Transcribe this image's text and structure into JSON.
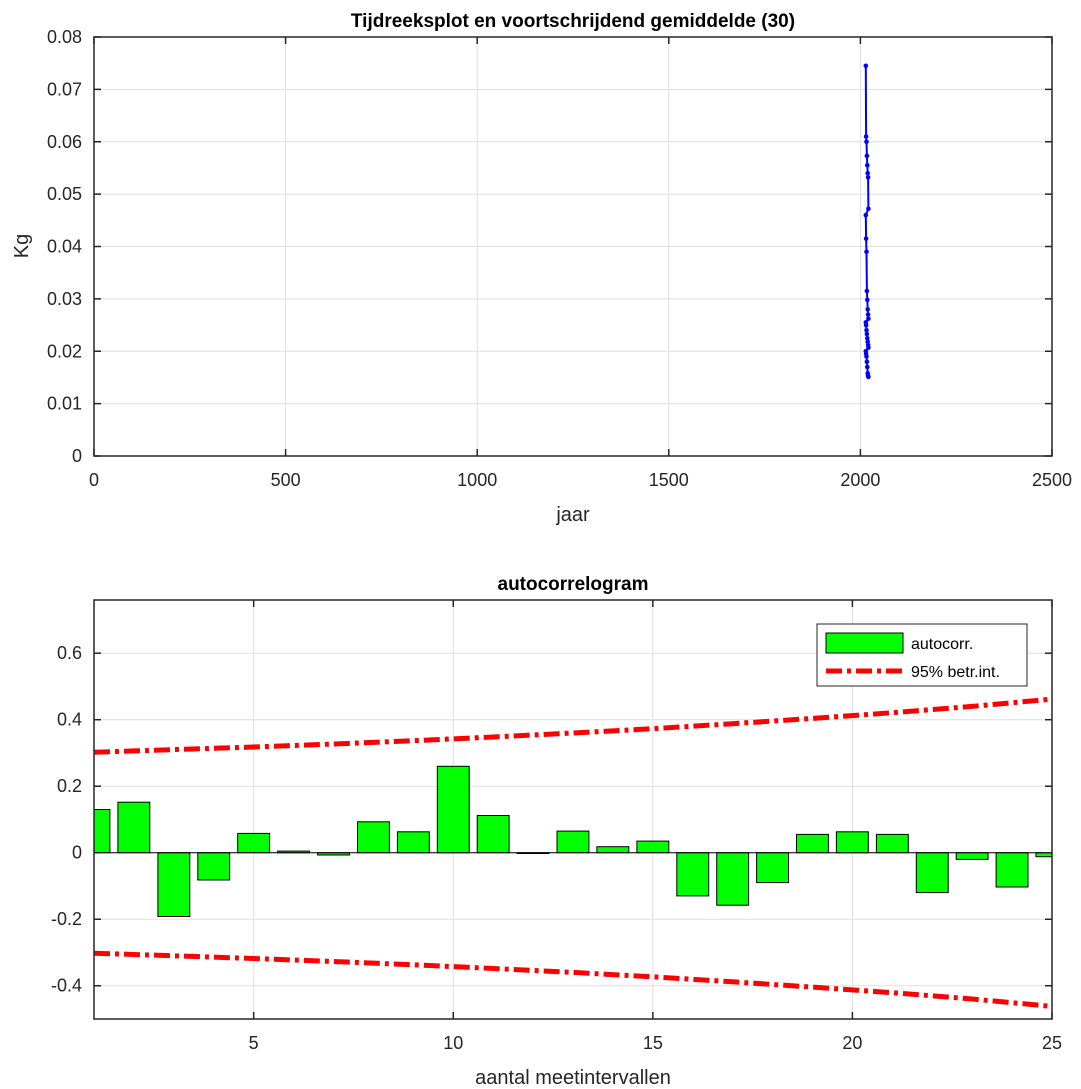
{
  "chart_data": [
    {
      "type": "line",
      "title": "Tijdreeksplot en voortschrijdend gemiddelde (30)",
      "xlabel": "jaar",
      "ylabel": "Kg",
      "xlim": [
        0,
        2500
      ],
      "ylim": [
        0,
        0.08
      ],
      "xticks": [
        "0",
        "500",
        "1000",
        "1500",
        "2000",
        "2500"
      ],
      "yticks": [
        "0",
        "0.01",
        "0.02",
        "0.03",
        "0.04",
        "0.05",
        "0.06",
        "0.07",
        "0.08"
      ],
      "grid": true,
      "series_color": "#0000ff",
      "series": [
        {
          "x": [
            2014,
            2015,
            2016,
            2017,
            2018,
            2019,
            2020,
            2021,
            2014,
            2015,
            2016,
            2017,
            2018,
            2019,
            2020,
            2021,
            2014,
            2015,
            2016,
            2017,
            2018,
            2019,
            2020,
            2021,
            2014,
            2015,
            2016,
            2017,
            2018,
            2019,
            2020,
            2021
          ],
          "values": [
            0.0745,
            0.061,
            0.06,
            0.0573,
            0.0555,
            0.054,
            0.0532,
            0.0472,
            0.046,
            0.0415,
            0.039,
            0.0315,
            0.0298,
            0.028,
            0.027,
            0.0262,
            0.0255,
            0.025,
            0.024,
            0.0233,
            0.0225,
            0.0218,
            0.0212,
            0.0207,
            0.02,
            0.0195,
            0.019,
            0.018,
            0.017,
            0.0158,
            0.0153,
            0.0151
          ]
        }
      ]
    },
    {
      "type": "bar",
      "title": "autocorrelogram",
      "xlabel": "aantal meetintervallen",
      "ylabel": "",
      "xlim": [
        1,
        25
      ],
      "ylim": [
        -0.5,
        0.76
      ],
      "xticks": [
        "5",
        "10",
        "15",
        "20",
        "25"
      ],
      "yticks": [
        "-0.4",
        "-0.2",
        "0",
        "0.2",
        "0.4",
        "0.6"
      ],
      "grid": true,
      "legend_position": "top-right",
      "bar_color": "#00ff00",
      "ci_color": "#ff0000",
      "series": [
        {
          "name": "autocorr.",
          "x": [
            1,
            2,
            3,
            4,
            5,
            6,
            7,
            8,
            9,
            10,
            11,
            12,
            13,
            14,
            15,
            16,
            17,
            18,
            19,
            20,
            21,
            22,
            23,
            24,
            25
          ],
          "values": [
            0.13,
            0.152,
            -0.192,
            -0.082,
            0.058,
            0.005,
            -0.007,
            0.093,
            0.063,
            0.26,
            0.112,
            0.0,
            0.065,
            0.018,
            0.035,
            -0.13,
            -0.158,
            -0.09,
            0.055,
            0.063,
            0.055,
            -0.12,
            -0.02,
            -0.103,
            -0.012
          ]
        },
        {
          "name": "95% betr.int.",
          "x": [
            1,
            3,
            5,
            7,
            9,
            11,
            13,
            15,
            17,
            19,
            21,
            23,
            25
          ],
          "upper": [
            0.302,
            0.31,
            0.318,
            0.327,
            0.337,
            0.348,
            0.36,
            0.373,
            0.388,
            0.404,
            0.421,
            0.44,
            0.462
          ],
          "lower": [
            -0.302,
            -0.31,
            -0.318,
            -0.327,
            -0.337,
            -0.348,
            -0.36,
            -0.373,
            -0.388,
            -0.404,
            -0.421,
            -0.44,
            -0.462
          ]
        }
      ]
    }
  ]
}
